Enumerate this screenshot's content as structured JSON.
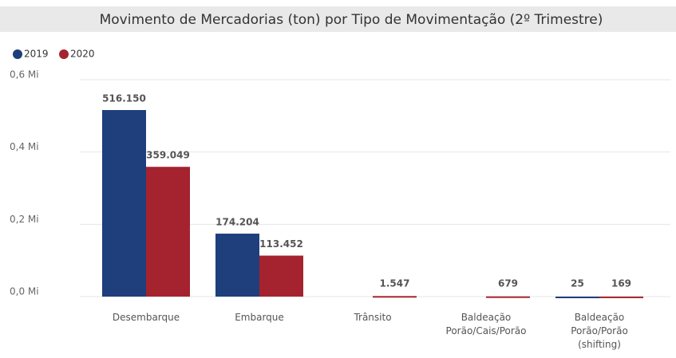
{
  "chart_data": {
    "type": "bar",
    "title": "Movimento de Mercadorias (ton) por Tipo de Movimentação (2º Trimestre)",
    "categories": [
      "Desembarque",
      "Embarque",
      "Trânsito",
      "Baldeação Porão/Cais/Porão",
      "Baldeação Porão/Porão (shifting)"
    ],
    "series": [
      {
        "name": "2019",
        "color": "#1f3e7c",
        "values": [
          516150,
          174204,
          null,
          null,
          25
        ],
        "value_labels": [
          "516.150",
          "174.204",
          null,
          null,
          "25"
        ]
      },
      {
        "name": "2020",
        "color": "#a4232f",
        "values": [
          359049,
          113452,
          1547,
          679,
          169
        ],
        "value_labels": [
          "359.049",
          "113.452",
          "1.547",
          "679",
          "169"
        ]
      }
    ],
    "ylim": [
      0,
      600000
    ],
    "yticks": [
      {
        "value": 0,
        "label": "0,0 Mi"
      },
      {
        "value": 200000,
        "label": "0,2 Mi"
      },
      {
        "value": 400000,
        "label": "0,4 Mi"
      },
      {
        "value": 600000,
        "label": "0,6 Mi"
      }
    ],
    "grid": true,
    "legend": "top-left"
  }
}
